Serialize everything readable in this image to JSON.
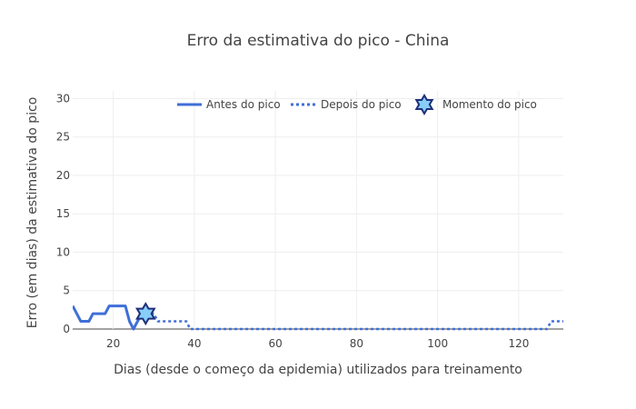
{
  "chart_data": {
    "type": "line",
    "title": "Erro da estimativa do pico - China",
    "xlabel": "Dias (desde o começo da epidemia) utilizados para treinamento",
    "ylabel": "Erro (em dias) da estimativa do pico",
    "xlim": [
      10,
      131
    ],
    "ylim": [
      0,
      31
    ],
    "xticks": [
      20,
      40,
      60,
      80,
      100,
      120
    ],
    "yticks": [
      0,
      5,
      10,
      15,
      20,
      25,
      30
    ],
    "grid": true,
    "legend_position": "top-right",
    "series": [
      {
        "name": "Antes do pico",
        "style": "solid",
        "color": "#3f6fd8",
        "x": [
          10,
          11,
          12,
          13,
          14,
          15,
          16,
          17,
          18,
          19,
          20,
          21,
          22,
          23,
          24,
          25,
          26,
          27,
          28
        ],
        "y": [
          3,
          2,
          1,
          1,
          1,
          2,
          2,
          2,
          2,
          3,
          3,
          3,
          3,
          3,
          1,
          0,
          1,
          2,
          2
        ]
      },
      {
        "name": "Depois do pico",
        "style": "dotted",
        "color": "#3f6fd8",
        "x": [
          28,
          29,
          30,
          31,
          32,
          33,
          34,
          35,
          36,
          37,
          38,
          39,
          40,
          45,
          50,
          55,
          60,
          65,
          70,
          75,
          80,
          85,
          90,
          95,
          100,
          105,
          110,
          115,
          120,
          125,
          126,
          127,
          128,
          129,
          130,
          131
        ],
        "y": [
          2,
          2,
          2,
          1,
          1,
          1,
          1,
          1,
          1,
          1,
          1,
          0,
          0,
          0,
          0,
          0,
          0,
          0,
          0,
          0,
          0,
          0,
          0,
          0,
          0,
          0,
          0,
          0,
          0,
          0,
          0,
          0,
          1,
          1,
          1,
          1
        ]
      },
      {
        "name": "Momento do pico",
        "style": "marker",
        "marker": "star-of-david",
        "color": "#87cefa",
        "edge_color": "#1f2f7a",
        "x": [
          28
        ],
        "y": [
          2
        ]
      }
    ]
  }
}
